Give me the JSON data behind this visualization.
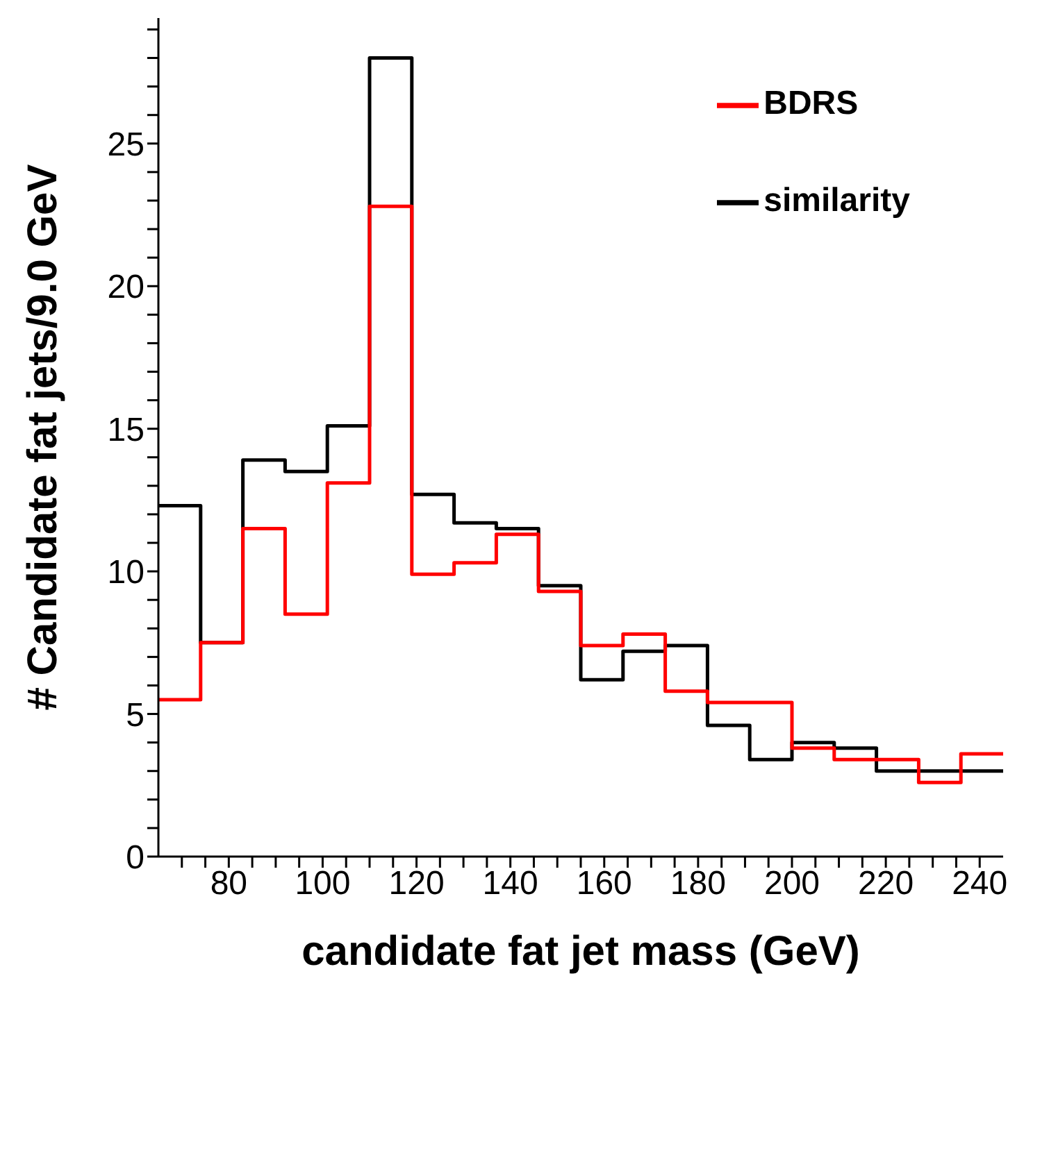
{
  "chart_data": {
    "type": "histogram",
    "xlabel": "candidate fat jet mass (GeV)",
    "ylabel": "# Candidate fat jets/9.0 GeV",
    "bins": [
      65,
      74,
      83,
      92,
      101,
      110,
      119,
      128,
      137,
      146,
      155,
      164,
      173,
      182,
      191,
      200,
      209,
      218,
      227,
      236,
      245
    ],
    "series": [
      {
        "name": "similarity",
        "color": "#000000",
        "values": [
          12.3,
          7.5,
          13.9,
          13.5,
          15.1,
          28.0,
          12.7,
          11.7,
          11.5,
          9.5,
          6.2,
          7.2,
          7.4,
          4.6,
          3.4,
          4.0,
          3.8,
          3.0,
          3.0,
          3.0
        ]
      },
      {
        "name": "BDRS",
        "color": "#ff0000",
        "values": [
          5.5,
          7.5,
          11.5,
          8.5,
          13.1,
          22.8,
          9.9,
          10.3,
          11.3,
          9.3,
          7.4,
          7.8,
          5.8,
          5.4,
          5.4,
          3.8,
          3.4,
          3.4,
          2.6,
          3.6
        ]
      }
    ],
    "xlim": [
      65,
      245
    ],
    "xticks": [
      {
        "value": 70,
        "label": null
      },
      {
        "value": 75,
        "label": null
      },
      80,
      {
        "value": 85,
        "label": null
      },
      {
        "value": 90,
        "label": null
      },
      {
        "value": 95,
        "label": null
      },
      100,
      {
        "value": 105,
        "label": null
      },
      {
        "value": 110,
        "label": null
      },
      {
        "value": 115,
        "label": null
      },
      120,
      {
        "value": 125,
        "label": null
      },
      {
        "value": 130,
        "label": null
      },
      {
        "value": 135,
        "label": null
      },
      140,
      {
        "value": 145,
        "label": null
      },
      {
        "value": 150,
        "label": null
      },
      {
        "value": 155,
        "label": null
      },
      160,
      {
        "value": 165,
        "label": null
      },
      {
        "value": 170,
        "label": null
      },
      {
        "value": 175,
        "label": null
      },
      180,
      {
        "value": 185,
        "label": null
      },
      {
        "value": 190,
        "label": null
      },
      {
        "value": 195,
        "label": null
      },
      200,
      {
        "value": 205,
        "label": null
      },
      {
        "value": 210,
        "label": null
      },
      {
        "value": 215,
        "label": null
      },
      220,
      {
        "value": 225,
        "label": null
      },
      {
        "value": 230,
        "label": null
      },
      {
        "value": 235,
        "label": null
      },
      240
    ],
    "ylim": [
      0,
      29.4
    ],
    "yticks": [
      0,
      {
        "value": 1,
        "label": null
      },
      {
        "value": 2,
        "label": null
      },
      {
        "value": 3,
        "label": null
      },
      {
        "value": 4,
        "label": null
      },
      5,
      {
        "value": 6,
        "label": null
      },
      {
        "value": 7,
        "label": null
      },
      {
        "value": 8,
        "label": null
      },
      {
        "value": 9,
        "label": null
      },
      10,
      {
        "value": 11,
        "label": null
      },
      {
        "value": 12,
        "label": null
      },
      {
        "value": 13,
        "label": null
      },
      {
        "value": 14,
        "label": null
      },
      15,
      {
        "value": 16,
        "label": null
      },
      {
        "value": 17,
        "label": null
      },
      {
        "value": 18,
        "label": null
      },
      {
        "value": 19,
        "label": null
      },
      20,
      {
        "value": 21,
        "label": null
      },
      {
        "value": 22,
        "label": null
      },
      {
        "value": 23,
        "label": null
      },
      {
        "value": 24,
        "label": null
      },
      25,
      {
        "value": 26,
        "label": null
      },
      {
        "value": 27,
        "label": null
      },
      {
        "value": 28,
        "label": null
      },
      {
        "value": 29,
        "label": null
      }
    ],
    "legend": "top right",
    "line_style": "solid"
  }
}
